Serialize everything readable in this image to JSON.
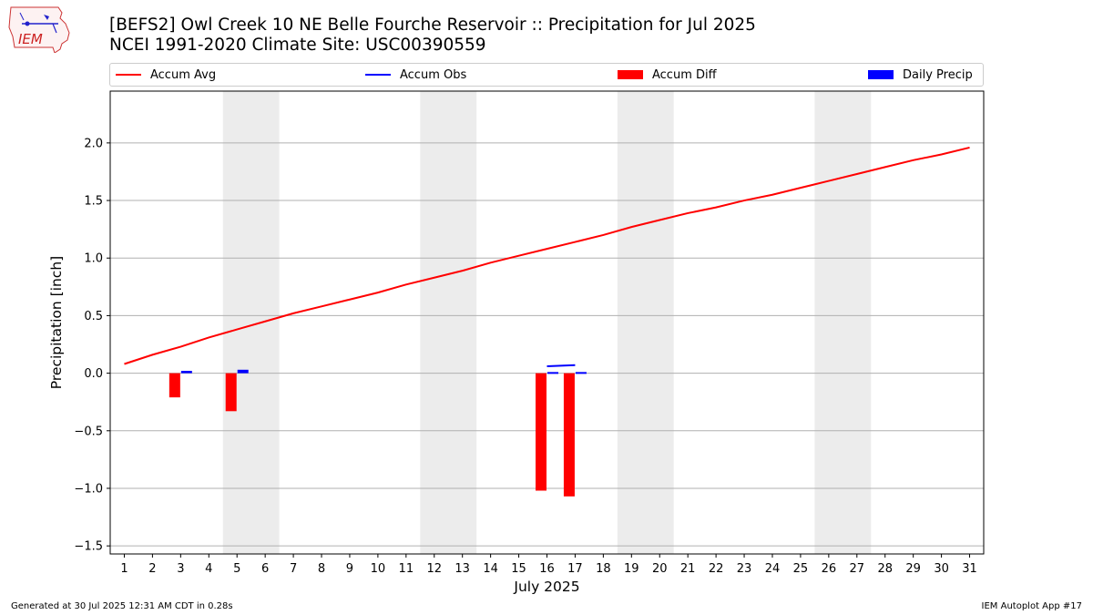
{
  "header": {
    "title_line1": "[BEFS2] Owl Creek 10 NE Belle Fourche Reservoir :: Precipitation for Jul 2025",
    "title_line2": "NCEI 1991-2020 Climate Site: USC00390559"
  },
  "logo": {
    "text": "IEM"
  },
  "legend": {
    "accum_avg": "Accum Avg",
    "accum_obs": "Accum Obs",
    "accum_diff": "Accum Diff",
    "daily_precip": "Daily Precip"
  },
  "footer": {
    "generated": "Generated at 30 Jul 2025 12:31 AM CDT in 0.28s",
    "app": "IEM Autoplot App #17"
  },
  "colors": {
    "avg": "#ff0000",
    "obs": "#0000ff",
    "diff": "#ff0000",
    "daily": "#0000ff",
    "weekend_band": "#ececec",
    "grid": "#b0b0b0"
  },
  "chart_data": {
    "type": "bar",
    "title": "[BEFS2] Owl Creek 10 NE Belle Fourche Reservoir :: Precipitation for Jul 2025",
    "xlabel": "July 2025",
    "ylabel": "Precipitation [inch]",
    "xlim": [
      0.5,
      31.5
    ],
    "ylim": [
      -1.57,
      2.45
    ],
    "x_ticks": [
      1,
      2,
      3,
      4,
      5,
      6,
      7,
      8,
      9,
      10,
      11,
      12,
      13,
      14,
      15,
      16,
      17,
      18,
      19,
      20,
      21,
      22,
      23,
      24,
      25,
      26,
      27,
      28,
      29,
      30,
      31
    ],
    "y_ticks": [
      -1.5,
      -1.0,
      -0.5,
      0.0,
      0.5,
      1.0,
      1.5,
      2.0
    ],
    "y_tick_labels": [
      "−1.5",
      "−1.0",
      "−0.5",
      "0.0",
      "0.5",
      "1.0",
      "1.5",
      "2.0"
    ],
    "grid": "y",
    "legend_position": "top",
    "weekend_bands": [
      [
        4.5,
        6.5
      ],
      [
        11.5,
        13.5
      ],
      [
        18.5,
        20.5
      ],
      [
        25.5,
        27.5
      ]
    ],
    "series": [
      {
        "name": "Accum Avg",
        "kind": "line",
        "x": [
          1,
          2,
          3,
          4,
          5,
          6,
          7,
          8,
          9,
          10,
          11,
          12,
          13,
          14,
          15,
          16,
          17,
          18,
          19,
          20,
          21,
          22,
          23,
          24,
          25,
          26,
          27,
          28,
          29,
          30,
          31
        ],
        "values": [
          0.08,
          0.16,
          0.23,
          0.31,
          0.38,
          0.45,
          0.52,
          0.58,
          0.64,
          0.7,
          0.77,
          0.83,
          0.89,
          0.96,
          1.02,
          1.08,
          1.14,
          1.2,
          1.27,
          1.33,
          1.39,
          1.44,
          1.5,
          1.55,
          1.61,
          1.67,
          1.73,
          1.79,
          1.85,
          1.9,
          1.96
        ]
      },
      {
        "name": "Accum Obs",
        "kind": "line",
        "x": [
          16,
          17
        ],
        "values": [
          0.06,
          0.07
        ]
      },
      {
        "name": "Accum Diff",
        "kind": "bar",
        "x": [
          3,
          5,
          16,
          17
        ],
        "values": [
          -0.21,
          -0.33,
          -1.02,
          -1.07
        ]
      },
      {
        "name": "Daily Precip",
        "kind": "bar",
        "x": [
          3,
          5,
          16,
          17
        ],
        "values": [
          0.02,
          0.03,
          0.01,
          0.01
        ]
      }
    ]
  }
}
